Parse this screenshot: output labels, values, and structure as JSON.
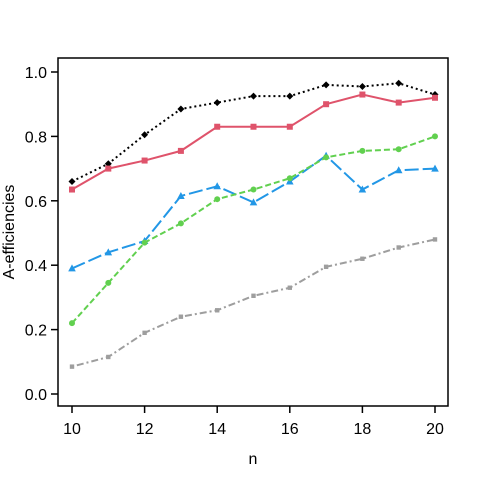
{
  "chart_data": {
    "type": "line",
    "title": "",
    "xlabel": "n",
    "ylabel": "A-efficiencies",
    "xlim": [
      10,
      20
    ],
    "ylim": [
      0.0,
      1.0
    ],
    "x_ticks": [
      10,
      12,
      14,
      16,
      18,
      20
    ],
    "y_ticks": [
      0.0,
      0.2,
      0.4,
      0.6,
      0.8,
      1.0
    ],
    "x_tick_labels": [
      "10",
      "12",
      "14",
      "16",
      "18",
      "20"
    ],
    "y_tick_labels": [
      "0.0",
      "0.2",
      "0.4",
      "0.6",
      "0.8",
      "1.0"
    ],
    "grid": false,
    "legend": "none",
    "x": [
      10,
      11,
      12,
      13,
      14,
      15,
      16,
      17,
      18,
      19,
      20
    ],
    "series": [
      {
        "color": "#000000",
        "line_style": "dotted",
        "marker": "diamond",
        "values": [
          0.66,
          0.715,
          0.805,
          0.885,
          0.905,
          0.925,
          0.925,
          0.96,
          0.955,
          0.965,
          0.93
        ]
      },
      {
        "color": "#DF536B",
        "line_style": "solid",
        "marker": "square",
        "values": [
          0.635,
          0.7,
          0.725,
          0.755,
          0.83,
          0.83,
          0.83,
          0.9,
          0.93,
          0.905,
          0.92
        ]
      },
      {
        "color": "#2297E6",
        "line_style": "longdash",
        "marker": "triangle",
        "values": [
          0.39,
          0.44,
          0.475,
          0.615,
          0.645,
          0.595,
          0.66,
          0.74,
          0.635,
          0.695,
          0.7
        ]
      },
      {
        "color": "#61D04F",
        "line_style": "dashed",
        "marker": "circle",
        "values": [
          0.22,
          0.345,
          0.47,
          0.53,
          0.605,
          0.635,
          0.67,
          0.735,
          0.755,
          0.76,
          0.8
        ]
      },
      {
        "color": "#9E9E9E",
        "line_style": "dotdash",
        "marker": "square-small",
        "values": [
          0.085,
          0.115,
          0.19,
          0.24,
          0.26,
          0.305,
          0.33,
          0.395,
          0.42,
          0.455,
          0.48
        ]
      }
    ]
  }
}
